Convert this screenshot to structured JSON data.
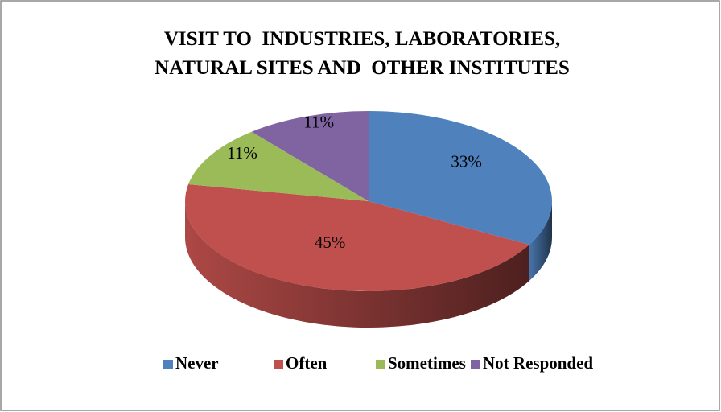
{
  "chart_data": {
    "type": "pie3d",
    "title": [
      "VISIT TO  INDUSTRIES, LABORATORIES,",
      "NATURAL SITES AND  OTHER INSTITUTES"
    ],
    "categories": [
      "Never",
      "Often",
      "Sometimes",
      "Not Responded"
    ],
    "values": [
      33,
      45,
      11,
      11
    ],
    "value_labels": [
      "33%",
      "45%",
      "11%",
      "11%"
    ],
    "colors": [
      "#4f81bd",
      "#c0504d",
      "#9bbb59",
      "#8064a2"
    ],
    "legend": "bottom"
  }
}
